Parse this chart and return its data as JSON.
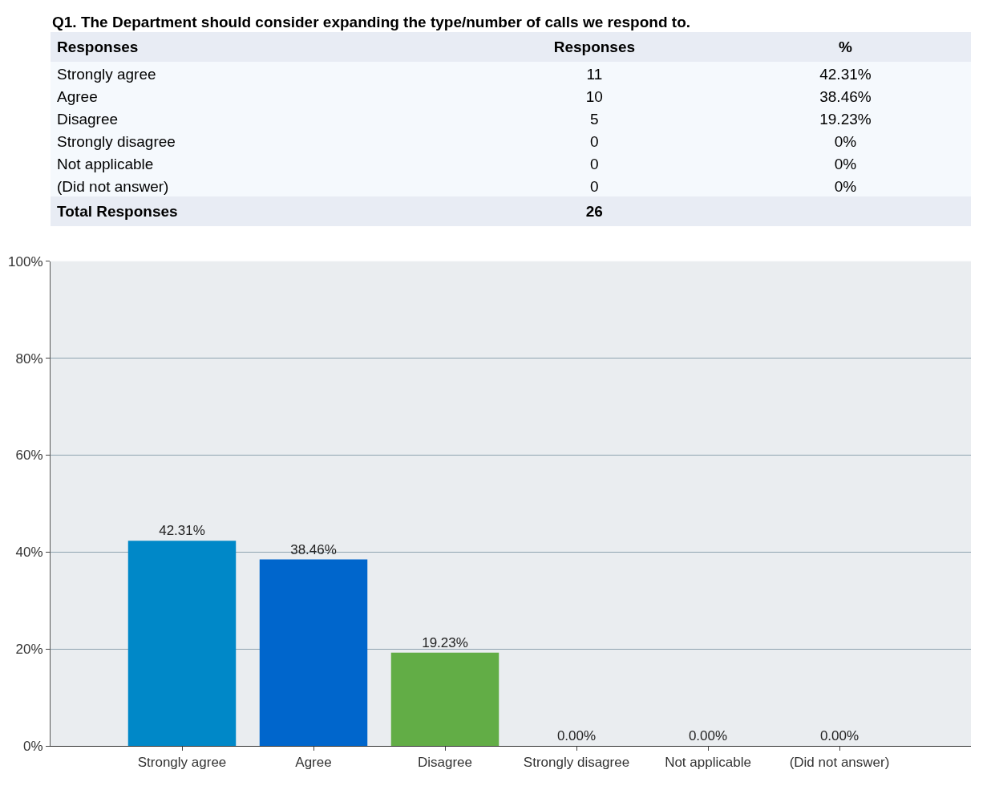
{
  "chart_data": [
    {
      "type": "other",
      "title": "Q1. The Department should consider expanding the type/number of calls we respond to.",
      "xlabel": "Responses",
      "categories": [
        "Strongly agree",
        "Agree",
        "Disagree",
        "Strongly disagree",
        "Not applicable",
        "(Did not answer)"
      ],
      "series": [
        {
          "name": "Responses",
          "values": [
            11,
            10,
            5,
            0,
            0,
            0
          ]
        },
        {
          "name": "%",
          "values": [
            42.31,
            38.46,
            19.23,
            0,
            0,
            0
          ],
          "value_labels": [
            "42.31%",
            "38.46%",
            "19.23%",
            "0%",
            "0%",
            "0%"
          ]
        }
      ],
      "data_labels": true,
      "annotations": [
        "Total Responses",
        "26"
      ]
    },
    {
      "type": "bar",
      "categories": [
        "Strongly agree",
        "Agree",
        "Disagree",
        "Strongly disagree",
        "Not applicable",
        "(Did not answer)"
      ],
      "values": [
        42.31,
        38.46,
        19.23,
        0,
        0,
        0
      ],
      "colors": [
        "#0088c8",
        "#0066cc",
        "#62ad46",
        "#0088c8",
        "#0066cc",
        "#62ad46"
      ],
      "value_labels": [
        "42.31%",
        "38.46%",
        "19.23%",
        "0.00%",
        "0.00%",
        "0.00%"
      ],
      "ylim": [
        0,
        100
      ],
      "yticks": [
        {
          "value": 0,
          "label": "0%"
        },
        {
          "value": 20,
          "label": "20%"
        },
        {
          "value": 40,
          "label": "40%"
        },
        {
          "value": 60,
          "label": "60%"
        },
        {
          "value": 80,
          "label": "80%"
        },
        {
          "value": 100,
          "label": "100%"
        }
      ],
      "grid": "y"
    }
  ]
}
